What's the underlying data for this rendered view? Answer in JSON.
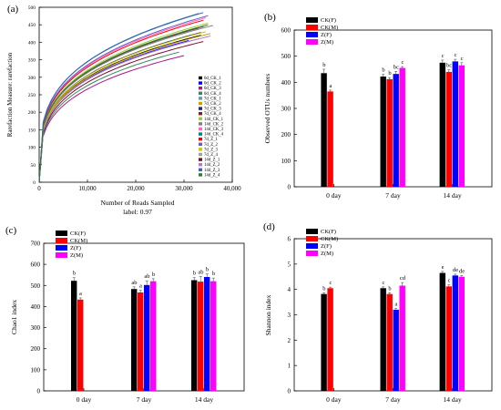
{
  "chart_data": [
    {
      "panel": "(a)",
      "type": "line",
      "xlabel": "Number of Reads Sampled",
      "xlabel2": "label: 0.97",
      "ylabel": "Rarefaction Measure: rarefaction",
      "xlim": [
        0,
        40000
      ],
      "ylim": [
        0,
        500
      ],
      "xticks": [
        "0",
        "10,000",
        "20,000",
        "30,000",
        "40,000"
      ],
      "yticks": [
        "0",
        "50",
        "100",
        "150",
        "200",
        "250",
        "300",
        "350",
        "400",
        "450",
        "500"
      ],
      "legend_position": "right",
      "series": [
        {
          "name": "0d_CK_1",
          "color": "#000000",
          "end_x": 33500,
          "end_y": 420
        },
        {
          "name": "0d_CK_2",
          "color": "#0000ff",
          "end_x": 31000,
          "end_y": 405
        },
        {
          "name": "0d_CK_3",
          "color": "#b0148c",
          "end_x": 30000,
          "end_y": 362
        },
        {
          "name": "0d_CK_4",
          "color": "#2e8b57",
          "end_x": 29000,
          "end_y": 372
        },
        {
          "name": "7d_CK_1",
          "color": "#5f9ea0",
          "end_x": 33000,
          "end_y": 440
        },
        {
          "name": "7d_CK_2",
          "color": "#d0a000",
          "end_x": 35500,
          "end_y": 425
        },
        {
          "name": "7d_CK_3",
          "color": "#1f2a7a",
          "end_x": 33500,
          "end_y": 428
        },
        {
          "name": "7d_CK_4",
          "color": "#8b1a1a",
          "end_x": 34000,
          "end_y": 445
        },
        {
          "name": "14d_CK_1",
          "color": "#9acd32",
          "end_x": 35000,
          "end_y": 455
        },
        {
          "name": "14d_CK_2",
          "color": "#808080",
          "end_x": 36000,
          "end_y": 448
        },
        {
          "name": "14d_CK_3",
          "color": "#ff69b4",
          "end_x": 34500,
          "end_y": 470
        },
        {
          "name": "14d_CK_4",
          "color": "#008080",
          "end_x": 33000,
          "end_y": 482
        },
        {
          "name": "7d_Z_1",
          "color": "#ff0000",
          "end_x": 34000,
          "end_y": 463
        },
        {
          "name": "7d_Z_2",
          "color": "#6a5acd",
          "end_x": 35000,
          "end_y": 476
        },
        {
          "name": "7d_Z_3",
          "color": "#c8c800",
          "end_x": 34500,
          "end_y": 430
        },
        {
          "name": "7d_Z_4",
          "color": "#a0a0a0",
          "end_x": 33000,
          "end_y": 410
        },
        {
          "name": "14d_Z_1",
          "color": "#7b0a2a",
          "end_x": 34000,
          "end_y": 402
        },
        {
          "name": "14d_Z_2",
          "color": "#b07ad0",
          "end_x": 35500,
          "end_y": 418
        },
        {
          "name": "14d_Z_3",
          "color": "#4060c0",
          "end_x": 34000,
          "end_y": 485
        },
        {
          "name": "14d_Z_4",
          "color": "#2e7d32",
          "end_x": 35000,
          "end_y": 450
        }
      ]
    },
    {
      "panel": "(b)",
      "type": "bar",
      "ylabel": "Observed OTUs numbers",
      "ylim": [
        0,
        600
      ],
      "yticks": [
        "0",
        "100",
        "200",
        "300",
        "400",
        "500",
        "600"
      ],
      "categories": [
        "0 day",
        "7 day",
        "14 day"
      ],
      "legend_position": "top-left",
      "series": [
        {
          "name": "CK(F)",
          "color": "#000000",
          "values": [
            435,
            422,
            475
          ],
          "errors": [
            15,
            8,
            10
          ],
          "letters": [
            "b",
            "b",
            "c"
          ]
        },
        {
          "name": "CK(M)",
          "color": "#ff0000",
          "values": [
            365,
            412,
            440
          ],
          "errors": [
            5,
            6,
            8
          ],
          "letters": [
            "a",
            "b",
            "bc"
          ]
        },
        {
          "name": "Z(F)",
          "color": "#0000ff",
          "values": [
            null,
            432,
            480
          ],
          "errors": [
            null,
            10,
            8
          ],
          "letters": [
            "",
            "bc",
            "c"
          ]
        },
        {
          "name": "Z(M)",
          "color": "#ff00ff",
          "values": [
            null,
            455,
            465
          ],
          "errors": [
            null,
            5,
            10
          ],
          "letters": [
            "",
            "c",
            "c"
          ]
        }
      ]
    },
    {
      "panel": "(c)",
      "type": "bar",
      "ylabel": "Chao1 index",
      "ylim": [
        0,
        700
      ],
      "yticks": [
        "0",
        "100",
        "200",
        "300",
        "400",
        "500",
        "600",
        "700"
      ],
      "categories": [
        "0 day",
        "7 day",
        "14 day"
      ],
      "legend_position": "top-left",
      "series": [
        {
          "name": "CK(F)",
          "color": "#000000",
          "values": [
            522,
            483,
            525
          ],
          "errors": [
            15,
            10,
            12
          ],
          "letters": [
            "b",
            "ab",
            "b"
          ]
        },
        {
          "name": "CK(M)",
          "color": "#ff0000",
          "values": [
            433,
            467,
            518
          ],
          "errors": [
            8,
            10,
            25
          ],
          "letters": [
            "a",
            "a",
            "ab"
          ]
        },
        {
          "name": "Z(F)",
          "color": "#0000ff",
          "values": [
            null,
            502,
            540
          ],
          "errors": [
            null,
            20,
            15
          ],
          "letters": [
            "",
            "ab",
            "b"
          ]
        },
        {
          "name": "Z(M)",
          "color": "#ff00ff",
          "values": [
            null,
            520,
            520
          ],
          "errors": [
            null,
            12,
            15
          ],
          "letters": [
            "",
            "b",
            "b"
          ]
        }
      ]
    },
    {
      "panel": "(d)",
      "type": "bar",
      "ylabel": "Shannon index",
      "ylim": [
        0,
        6
      ],
      "yticks": [
        "0",
        "1",
        "2",
        "3",
        "4",
        "5",
        "6"
      ],
      "categories": [
        "0 day",
        "7 day",
        "14 day"
      ],
      "legend_position": "top-left",
      "series": [
        {
          "name": "CK(F)",
          "color": "#000000",
          "values": [
            3.82,
            4.05,
            4.65
          ],
          "errors": [
            0.05,
            0.05,
            0.06
          ],
          "letters": [
            "b",
            "c",
            "e"
          ]
        },
        {
          "name": "CK(M)",
          "color": "#ff0000",
          "values": [
            4.05,
            3.82,
            4.12
          ],
          "errors": [
            0.04,
            0.05,
            0.06
          ],
          "letters": [
            "c",
            "b",
            "c"
          ]
        },
        {
          "name": "Z(F)",
          "color": "#0000ff",
          "values": [
            null,
            3.2,
            4.55
          ],
          "errors": [
            null,
            0.05,
            0.05
          ],
          "letters": [
            "",
            "a",
            "de"
          ]
        },
        {
          "name": "Z(M)",
          "color": "#ff00ff",
          "values": [
            null,
            4.15,
            4.5
          ],
          "errors": [
            null,
            0.12,
            0.05
          ],
          "letters": [
            "",
            "cd",
            "de"
          ]
        }
      ]
    }
  ]
}
